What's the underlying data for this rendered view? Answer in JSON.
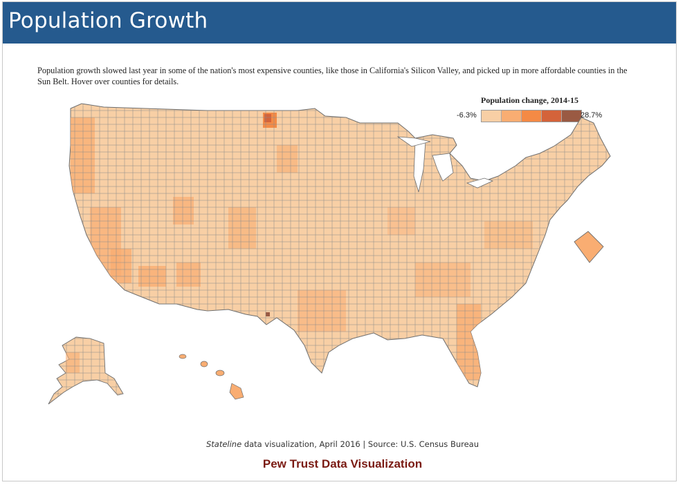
{
  "header": {
    "title": "Population Growth"
  },
  "description": "Population growth slowed last year in some of the nation's most expensive counties, like those in California's Silicon Valley, and picked up in more affordable counties in the Sun Belt. Hover over counties for details.",
  "legend": {
    "title": "Population change, 2014-15",
    "min_label": "-6.3%",
    "max_label": "28.7%",
    "colors": [
      "#f8cfa5",
      "#f9ad72",
      "#f48a45",
      "#d4633a",
      "#9a5a43"
    ]
  },
  "map": {
    "type": "choropleth",
    "regions": [
      "contiguous-us",
      "alaska",
      "hawaii",
      "district-of-columbia-inset"
    ],
    "base_fill": "#f8cfa5",
    "stroke": "#6d6d6d"
  },
  "footer": {
    "source_italic": "Stateline",
    "source_rest": " data visualization, April 2016 | Source: U.S. Census Bureau",
    "brand": "Pew Trust Data Visualization"
  }
}
